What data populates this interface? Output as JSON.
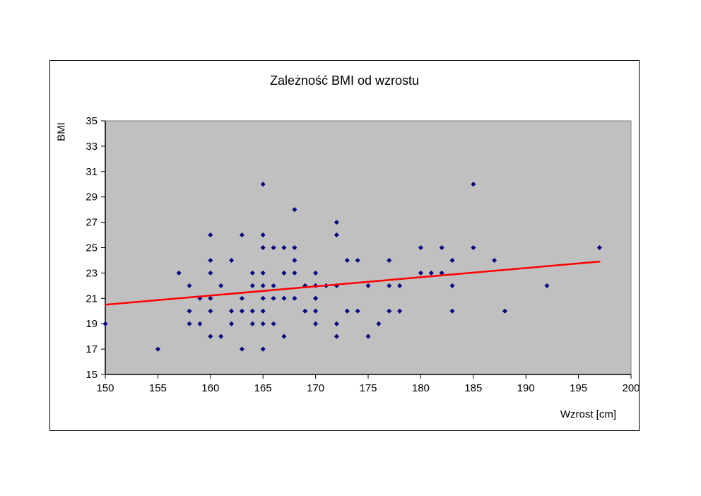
{
  "chart_data": {
    "type": "scatter",
    "title": "Zależność BMI od wzrostu",
    "xlabel": "Wzrost [cm]",
    "ylabel": "BMI",
    "xlim": [
      150,
      200
    ],
    "ylim": [
      15,
      35
    ],
    "x_ticks": [
      150,
      155,
      160,
      165,
      170,
      175,
      180,
      185,
      190,
      195,
      200
    ],
    "y_ticks": [
      15,
      17,
      19,
      21,
      23,
      25,
      27,
      29,
      31,
      33,
      35
    ],
    "grid": false,
    "legend": "none",
    "plot_bg_color": "#c0c0c0",
    "plot_border_color": "#808080",
    "axis_color": "#000000",
    "marker_color": "#000080",
    "trendline_color": "#ff0000",
    "points": [
      [
        150,
        19
      ],
      [
        155,
        17
      ],
      [
        157,
        23
      ],
      [
        158,
        22
      ],
      [
        158,
        20
      ],
      [
        158,
        19
      ],
      [
        159,
        21
      ],
      [
        159,
        19
      ],
      [
        160,
        26
      ],
      [
        160,
        24
      ],
      [
        160,
        23
      ],
      [
        160,
        21
      ],
      [
        160,
        20
      ],
      [
        160,
        18
      ],
      [
        161,
        22
      ],
      [
        161,
        18
      ],
      [
        162,
        24
      ],
      [
        162,
        20
      ],
      [
        162,
        19
      ],
      [
        163,
        26
      ],
      [
        163,
        21
      ],
      [
        163,
        20
      ],
      [
        163,
        17
      ],
      [
        164,
        23
      ],
      [
        164,
        22
      ],
      [
        164,
        20
      ],
      [
        164,
        19
      ],
      [
        165,
        30
      ],
      [
        165,
        26
      ],
      [
        165,
        25
      ],
      [
        165,
        23
      ],
      [
        165,
        22
      ],
      [
        165,
        21
      ],
      [
        165,
        20
      ],
      [
        165,
        19
      ],
      [
        165,
        17
      ],
      [
        166,
        25
      ],
      [
        166,
        22
      ],
      [
        166,
        21
      ],
      [
        166,
        19
      ],
      [
        167,
        25
      ],
      [
        167,
        23
      ],
      [
        167,
        21
      ],
      [
        167,
        18
      ],
      [
        168,
        28
      ],
      [
        168,
        25
      ],
      [
        168,
        24
      ],
      [
        168,
        23
      ],
      [
        168,
        21
      ],
      [
        169,
        22
      ],
      [
        169,
        20
      ],
      [
        170,
        23
      ],
      [
        170,
        22
      ],
      [
        170,
        21
      ],
      [
        170,
        20
      ],
      [
        170,
        19
      ],
      [
        171,
        22
      ],
      [
        172,
        27
      ],
      [
        172,
        26
      ],
      [
        172,
        22
      ],
      [
        172,
        19
      ],
      [
        172,
        18
      ],
      [
        173,
        24
      ],
      [
        173,
        20
      ],
      [
        174,
        24
      ],
      [
        174,
        20
      ],
      [
        175,
        22
      ],
      [
        175,
        18
      ],
      [
        176,
        19
      ],
      [
        177,
        24
      ],
      [
        177,
        22
      ],
      [
        177,
        20
      ],
      [
        178,
        22
      ],
      [
        178,
        20
      ],
      [
        180,
        25
      ],
      [
        180,
        23
      ],
      [
        181,
        23
      ],
      [
        182,
        25
      ],
      [
        182,
        23
      ],
      [
        183,
        24
      ],
      [
        183,
        22
      ],
      [
        183,
        20
      ],
      [
        185,
        30
      ],
      [
        185,
        25
      ],
      [
        187,
        24
      ],
      [
        188,
        20
      ],
      [
        192,
        22
      ],
      [
        197,
        25
      ]
    ],
    "trendline": {
      "x1": 150,
      "y1": 20.5,
      "x2": 197,
      "y2": 23.9
    }
  }
}
